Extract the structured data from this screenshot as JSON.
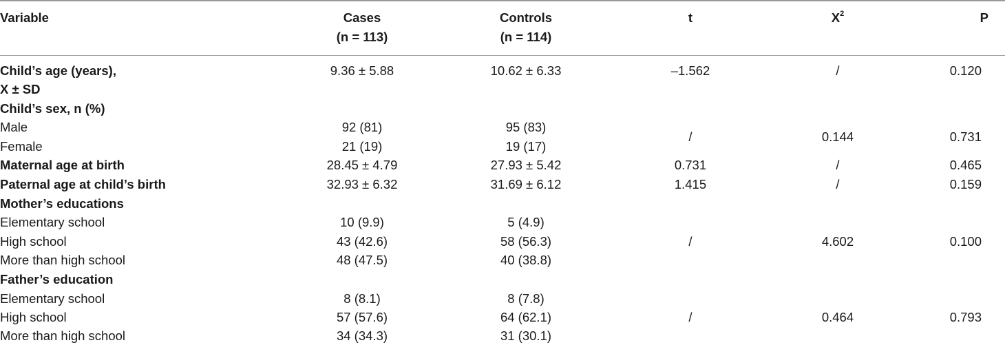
{
  "header": {
    "variable": "Variable",
    "cases": {
      "line1": "Cases",
      "line2": "(n = 113)"
    },
    "controls": {
      "line1": "Controls",
      "line2": "(n = 114)"
    },
    "t": "t",
    "x2": {
      "base": "X",
      "sup": "2"
    },
    "p": "P"
  },
  "rows": {
    "child_age": {
      "label_line1": "Child’s age (years),",
      "label_line2": "X ± SD",
      "cases": "9.36 ± 5.88",
      "controls": "10.62 ± 6.33",
      "t": "–1.562",
      "x2": "/",
      "p": "0.120"
    },
    "child_sex": {
      "label": "Child’s sex, n (%)",
      "male": {
        "label": "Male",
        "cases": "92 (81)",
        "controls": "95 (83)"
      },
      "female": {
        "label": "Female",
        "cases": "21 (19)",
        "controls": "19 (17)"
      },
      "t": "/",
      "x2": "0.144",
      "p": "0.731"
    },
    "maternal_age": {
      "label": "Maternal age at birth",
      "cases": "28.45 ± 4.79",
      "controls": "27.93 ± 5.42",
      "t": "0.731",
      "x2": "/",
      "p": "0.465"
    },
    "paternal_age": {
      "label": "Paternal age at child’s birth",
      "cases": "32.93 ± 6.32",
      "controls": "31.69 ± 6.12",
      "t": "1.415",
      "x2": "/",
      "p": "0.159"
    },
    "mother_edu": {
      "label": "Mother’s educations",
      "elementary": {
        "label": "Elementary school",
        "cases": "10 (9.9)",
        "controls": "5 (4.9)"
      },
      "high": {
        "label": "High school",
        "cases": "43 (42.6)",
        "controls": "58 (56.3)"
      },
      "more": {
        "label": "More than high school",
        "cases": "48 (47.5)",
        "controls": "40 (38.8)"
      },
      "t": "/",
      "x2": "4.602",
      "p": "0.100"
    },
    "father_edu": {
      "label": "Father’s education",
      "elementary": {
        "label": "Elementary school",
        "cases": "8 (8.1)",
        "controls": "8 (7.8)"
      },
      "high": {
        "label": "High school",
        "cases": "57 (57.6)",
        "controls": "64 (62.1)"
      },
      "more": {
        "label": "More than high school",
        "cases": "34 (34.3)",
        "controls": "31 (30.1)"
      },
      "t": "/",
      "x2": "0.464",
      "p": "0.793"
    }
  }
}
